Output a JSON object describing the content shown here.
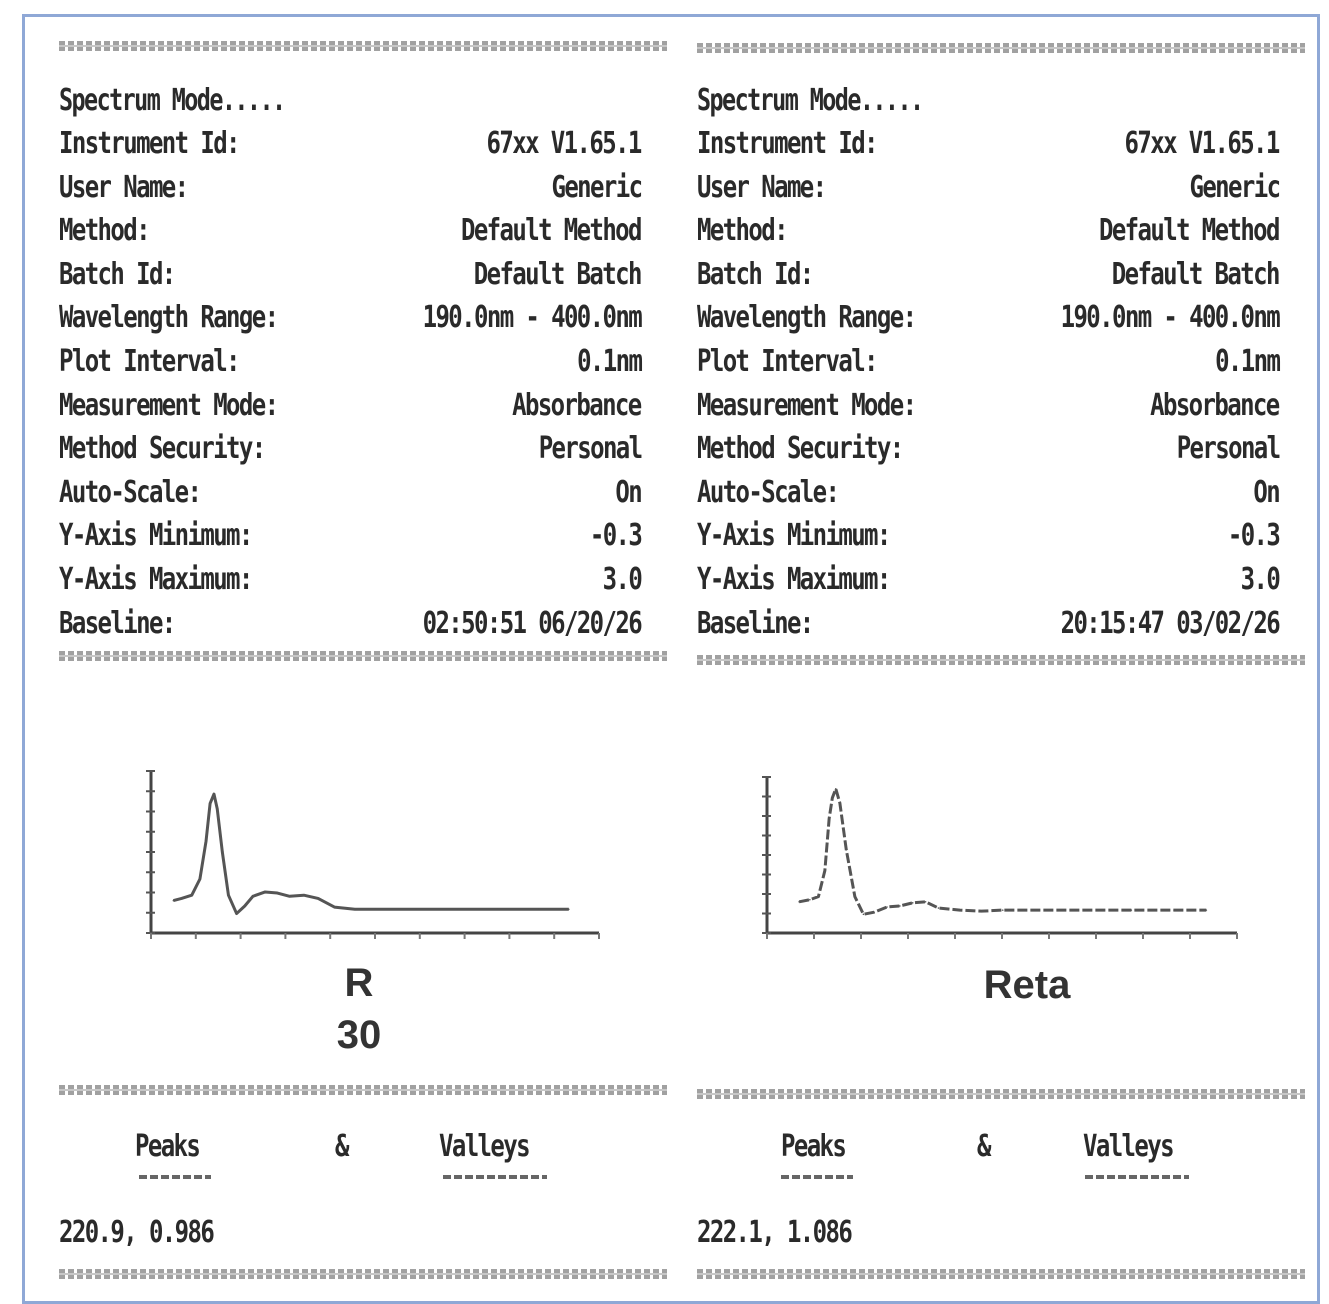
{
  "panels": [
    {
      "mode_line": "Spectrum Mode.....",
      "fields": [
        {
          "label": "Instrument Id:",
          "value": "67xx V1.65.1"
        },
        {
          "label": "User Name:",
          "value": "Generic"
        },
        {
          "label": "Method:",
          "value": "Default Method"
        },
        {
          "label": "Batch Id:",
          "value": "Default Batch"
        },
        {
          "label": "Wavelength Range:",
          "value": "190.0nm - 400.0nm"
        },
        {
          "label": "Plot Interval:",
          "value": "0.1nm"
        },
        {
          "label": "Measurement Mode:",
          "value": "Absorbance"
        },
        {
          "label": "Method Security:",
          "value": "Personal"
        },
        {
          "label": "Auto-Scale:",
          "value": "On"
        },
        {
          "label": "Y-Axis Minimum:",
          "value": "-0.3"
        },
        {
          "label": "Y-Axis Maximum:",
          "value": "3.0"
        },
        {
          "label": "Baseline:",
          "value": "02:50:51 06/20/26"
        }
      ],
      "sample_label_line1": "R",
      "sample_label_line2": "30",
      "peaks_label": "Peaks",
      "amp_label": "&",
      "valleys_label": "Valleys",
      "peak_value": "220.9,  0.986"
    },
    {
      "mode_line": "Spectrum Mode.....",
      "fields": [
        {
          "label": "Instrument Id:",
          "value": "67xx V1.65.1"
        },
        {
          "label": "User Name:",
          "value": "Generic"
        },
        {
          "label": "Method:",
          "value": "Default Method"
        },
        {
          "label": "Batch Id:",
          "value": "Default Batch"
        },
        {
          "label": "Wavelength Range:",
          "value": "190.0nm - 400.0nm"
        },
        {
          "label": "Plot Interval:",
          "value": "0.1nm"
        },
        {
          "label": "Measurement Mode:",
          "value": "Absorbance"
        },
        {
          "label": "Method Security:",
          "value": "Personal"
        },
        {
          "label": "Auto-Scale:",
          "value": "On"
        },
        {
          "label": "Y-Axis Minimum:",
          "value": "-0.3"
        },
        {
          "label": "Y-Axis Maximum:",
          "value": "3.0"
        },
        {
          "label": "Baseline:",
          "value": "20:15:47 03/02/26"
        }
      ],
      "sample_label_line1": "Reta",
      "sample_label_line2": "",
      "peaks_label": "Peaks",
      "amp_label": "&",
      "valleys_label": "Valleys",
      "peak_value": "222.1,  1.086"
    }
  ],
  "chart_data": [
    {
      "type": "line",
      "xlim": [
        190,
        400
      ],
      "ylim": [
        -0.3,
        1.2
      ],
      "series": [
        {
          "x": [
            201,
            205,
            210,
            214,
            217,
            219,
            220.9,
            222.5,
            225,
            228,
            232,
            236,
            240,
            246,
            252,
            258,
            265,
            272,
            280,
            290,
            300,
            320,
            340,
            360,
            380,
            395
          ],
          "y": [
            0.0,
            0.02,
            0.05,
            0.2,
            0.55,
            0.9,
            0.986,
            0.85,
            0.45,
            0.05,
            -0.12,
            -0.05,
            0.04,
            0.08,
            0.07,
            0.04,
            0.05,
            0.02,
            -0.06,
            -0.08,
            -0.08,
            -0.08,
            -0.08,
            -0.08,
            -0.08,
            -0.08
          ]
        }
      ]
    },
    {
      "type": "line",
      "xlim": [
        190,
        400
      ],
      "ylim": [
        -0.3,
        1.2
      ],
      "series": [
        {
          "x": [
            205,
            210,
            214,
            217,
            219,
            220.5,
            222.1,
            224,
            227,
            231,
            235,
            240,
            246,
            252,
            258,
            264,
            270,
            280,
            290,
            300,
            320,
            340,
            360,
            380,
            395
          ],
          "y": [
            0.0,
            0.02,
            0.05,
            0.3,
            0.8,
            1.0,
            1.086,
            0.95,
            0.5,
            0.05,
            -0.12,
            -0.1,
            -0.05,
            -0.04,
            -0.01,
            0.0,
            -0.06,
            -0.08,
            -0.09,
            -0.08,
            -0.08,
            -0.08,
            -0.08,
            -0.08,
            -0.08
          ]
        }
      ]
    }
  ]
}
